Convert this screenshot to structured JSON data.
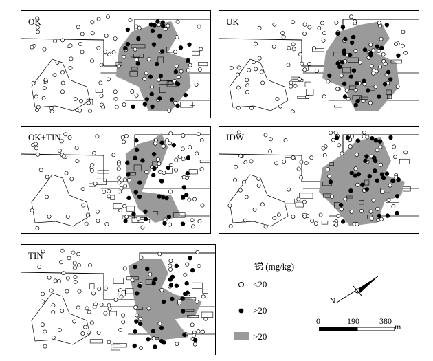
{
  "panels": [
    {
      "label": "OK"
    },
    {
      "label": "UK"
    },
    {
      "label": "OK+TIN"
    },
    {
      "label": "IDW"
    },
    {
      "label": "TIN"
    }
  ],
  "legend": {
    "title": "锑 (mg/kg)",
    "items": [
      {
        "symbol": "open-circle",
        "label": "<20"
      },
      {
        "symbol": "filled-circle",
        "label": ">20"
      },
      {
        "symbol": "gray-rectangle",
        "label": ">20"
      }
    ]
  },
  "scale_bar": {
    "ticks": [
      "0",
      "190",
      "380"
    ],
    "unit": "m"
  },
  "north_arrow": {
    "letter": "N"
  },
  "colors": {
    "hotspot": "#9a9a9a",
    "sample_open": "#ffffff",
    "sample_filled": "#000000"
  }
}
